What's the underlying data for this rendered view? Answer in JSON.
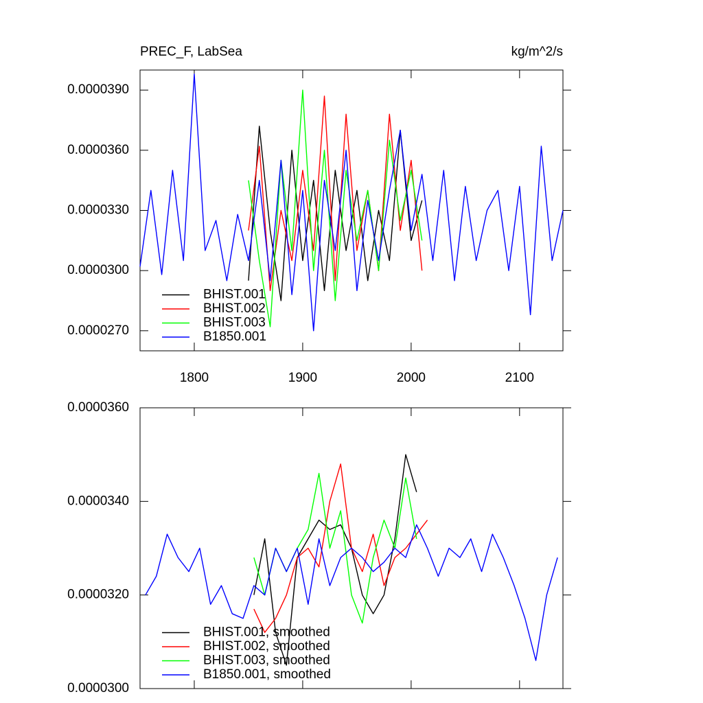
{
  "chart_data": [
    {
      "type": "line",
      "title": "PREC_F, LabSea",
      "right_title": "kg/m^2/s",
      "xlim": [
        1750,
        2140
      ],
      "xticks": [
        1800,
        1900,
        2000,
        2100
      ],
      "ylim": [
        2.6e-05,
        4e-05
      ],
      "yticks": [
        {
          "value": 2.7e-05,
          "label": "0.0000270"
        },
        {
          "value": 3e-05,
          "label": "0.0000300"
        },
        {
          "value": 3.3e-05,
          "label": "0.0000330"
        },
        {
          "value": 3.6e-05,
          "label": "0.0000360"
        },
        {
          "value": 3.9e-05,
          "label": "0.0000390"
        }
      ],
      "legend": "lower left",
      "series": [
        {
          "name": "BHIST.001",
          "color": "#000000",
          "x": [
            1850,
            1860,
            1870,
            1880,
            1890,
            1900,
            1910,
            1920,
            1930,
            1940,
            1950,
            1960,
            1970,
            1980,
            1990,
            2000,
            2010
          ],
          "values": [
            2.95e-05,
            3.72e-05,
            3.2e-05,
            2.85e-05,
            3.6e-05,
            3.05e-05,
            3.45e-05,
            2.9e-05,
            3.5e-05,
            3.1e-05,
            3.4e-05,
            2.95e-05,
            3.3e-05,
            3.05e-05,
            3.7e-05,
            3.15e-05,
            3.35e-05
          ]
        },
        {
          "name": "BHIST.002",
          "color": "#ff0000",
          "x": [
            1850,
            1860,
            1870,
            1880,
            1890,
            1900,
            1910,
            1920,
            1930,
            1940,
            1950,
            1960,
            1970,
            1980,
            1990,
            2000,
            2010
          ],
          "values": [
            3.2e-05,
            3.62e-05,
            2.9e-05,
            3.3e-05,
            3.05e-05,
            3.5e-05,
            3.1e-05,
            3.87e-05,
            2.95e-05,
            3.78e-05,
            3.1e-05,
            3.4e-05,
            3e-05,
            3.78e-05,
            3.2e-05,
            3.55e-05,
            3e-05
          ]
        },
        {
          "name": "BHIST.003",
          "color": "#00ff00",
          "x": [
            1850,
            1860,
            1870,
            1880,
            1890,
            1900,
            1910,
            1920,
            1930,
            1940,
            1950,
            1960,
            1970,
            1980,
            1990,
            2000,
            2010
          ],
          "values": [
            3.45e-05,
            3.05e-05,
            2.72e-05,
            3.55e-05,
            3.1e-05,
            3.9e-05,
            3e-05,
            3.6e-05,
            2.85e-05,
            3.5e-05,
            3.15e-05,
            3.4e-05,
            3e-05,
            3.65e-05,
            3.25e-05,
            3.5e-05,
            3.15e-05
          ]
        },
        {
          "name": "B1850.001",
          "color": "#0000ff",
          "x": [
            1750,
            1760,
            1770,
            1780,
            1790,
            1800,
            1810,
            1820,
            1830,
            1840,
            1850,
            1860,
            1870,
            1880,
            1890,
            1900,
            1910,
            1920,
            1930,
            1940,
            1950,
            1960,
            1970,
            1980,
            1990,
            2000,
            2010,
            2020,
            2030,
            2040,
            2050,
            2060,
            2070,
            2080,
            2090,
            2100,
            2110,
            2120,
            2130,
            2140
          ],
          "values": [
            3.02e-05,
            3.4e-05,
            2.98e-05,
            3.5e-05,
            3.05e-05,
            3.98e-05,
            3.1e-05,
            3.25e-05,
            2.95e-05,
            3.28e-05,
            3.05e-05,
            3.45e-05,
            2.95e-05,
            3.55e-05,
            2.88e-05,
            3.4e-05,
            2.7e-05,
            3.45e-05,
            3.1e-05,
            3.6e-05,
            2.9e-05,
            3.35e-05,
            3.05e-05,
            3.4e-05,
            3.7e-05,
            3.2e-05,
            3.48e-05,
            3.05e-05,
            3.5e-05,
            2.95e-05,
            3.42e-05,
            3.05e-05,
            3.3e-05,
            3.4e-05,
            3e-05,
            3.42e-05,
            2.78e-05,
            3.62e-05,
            3.05e-05,
            3.3e-05
          ]
        }
      ]
    },
    {
      "type": "line",
      "xlim": [
        1750,
        2140
      ],
      "ylim": [
        3e-05,
        3.6e-05
      ],
      "yticks": [
        {
          "value": 3e-05,
          "label": "0.0000300"
        },
        {
          "value": 3.2e-05,
          "label": "0.0000320"
        },
        {
          "value": 3.4e-05,
          "label": "0.0000340"
        },
        {
          "value": 3.6e-05,
          "label": "0.0000360"
        }
      ],
      "legend": "lower left",
      "series": [
        {
          "name": "BHIST.001, smoothed",
          "color": "#000000",
          "x": [
            1855,
            1865,
            1875,
            1885,
            1895,
            1905,
            1915,
            1925,
            1935,
            1945,
            1955,
            1965,
            1975,
            1985,
            1995,
            2005
          ],
          "values": [
            3.2e-05,
            3.32e-05,
            3.12e-05,
            3.05e-05,
            3.28e-05,
            3.32e-05,
            3.36e-05,
            3.34e-05,
            3.35e-05,
            3.3e-05,
            3.2e-05,
            3.16e-05,
            3.2e-05,
            3.32e-05,
            3.5e-05,
            3.42e-05
          ]
        },
        {
          "name": "BHIST.002, smoothed",
          "color": "#ff0000",
          "x": [
            1855,
            1865,
            1875,
            1885,
            1895,
            1905,
            1915,
            1925,
            1935,
            1945,
            1955,
            1965,
            1975,
            1985,
            1995,
            2005,
            2015
          ],
          "values": [
            3.17e-05,
            3.12e-05,
            3.15e-05,
            3.2e-05,
            3.28e-05,
            3.3e-05,
            3.26e-05,
            3.4e-05,
            3.48e-05,
            3.3e-05,
            3.25e-05,
            3.33e-05,
            3.22e-05,
            3.28e-05,
            3.3e-05,
            3.33e-05,
            3.36e-05
          ]
        },
        {
          "name": "BHIST.003, smoothed",
          "color": "#00ff00",
          "x": [
            1855,
            1865,
            1875,
            1885,
            1895,
            1905,
            1915,
            1925,
            1935,
            1945,
            1955,
            1965,
            1975,
            1985,
            1995,
            2005
          ],
          "values": [
            3.28e-05,
            3.2e-05,
            3.3e-05,
            3.25e-05,
            3.3e-05,
            3.34e-05,
            3.46e-05,
            3.3e-05,
            3.38e-05,
            3.2e-05,
            3.14e-05,
            3.28e-05,
            3.36e-05,
            3.3e-05,
            3.45e-05,
            3.32e-05
          ]
        },
        {
          "name": "B1850.001, smoothed",
          "color": "#0000ff",
          "x": [
            1755,
            1765,
            1775,
            1785,
            1795,
            1805,
            1815,
            1825,
            1835,
            1845,
            1855,
            1865,
            1875,
            1885,
            1895,
            1905,
            1915,
            1925,
            1935,
            1945,
            1955,
            1965,
            1975,
            1985,
            1995,
            2005,
            2015,
            2025,
            2035,
            2045,
            2055,
            2065,
            2075,
            2085,
            2095,
            2105,
            2115,
            2125,
            2135
          ],
          "values": [
            3.2e-05,
            3.24e-05,
            3.33e-05,
            3.28e-05,
            3.25e-05,
            3.3e-05,
            3.18e-05,
            3.22e-05,
            3.16e-05,
            3.15e-05,
            3.22e-05,
            3.2e-05,
            3.3e-05,
            3.25e-05,
            3.3e-05,
            3.18e-05,
            3.32e-05,
            3.22e-05,
            3.28e-05,
            3.3e-05,
            3.28e-05,
            3.25e-05,
            3.27e-05,
            3.3e-05,
            3.28e-05,
            3.35e-05,
            3.3e-05,
            3.24e-05,
            3.3e-05,
            3.28e-05,
            3.32e-05,
            3.25e-05,
            3.33e-05,
            3.28e-05,
            3.22e-05,
            3.15e-05,
            3.06e-05,
            3.2e-05,
            3.28e-05
          ]
        }
      ]
    }
  ]
}
